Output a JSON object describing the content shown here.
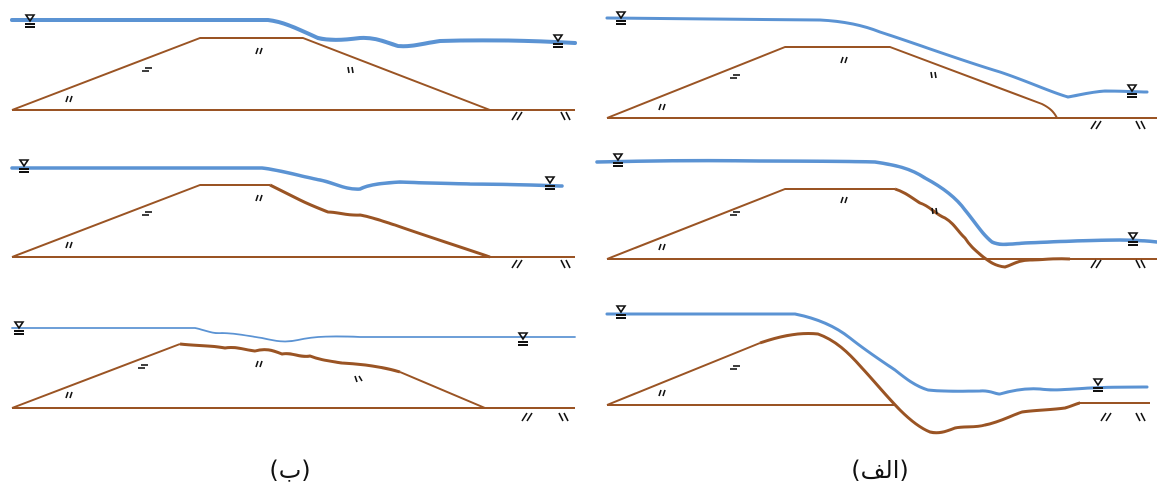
{
  "captions": {
    "left": "(ب)",
    "right": "(الف)"
  }
}
